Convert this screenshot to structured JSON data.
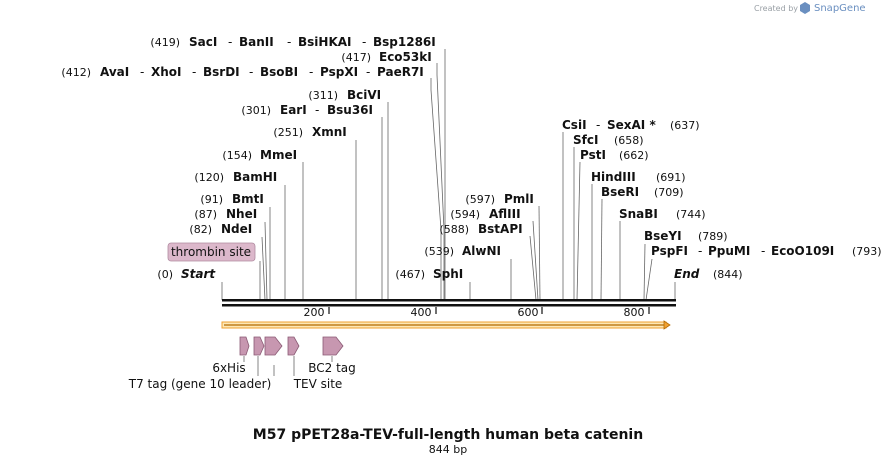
{
  "credit": {
    "prefix": "Created by",
    "brand": "SnapGene"
  },
  "title": "M57 pPET28a-TEV-full-length human beta catenin",
  "subtitle": "844 bp",
  "sequence_length": 844,
  "ruler_ticks": [
    "200",
    "400",
    "600",
    "800"
  ],
  "ends": [
    {
      "pos": "(0)",
      "label": "Start"
    },
    {
      "label": "End",
      "pos": "(844)"
    }
  ],
  "colors": {
    "orf": "#f0a030",
    "feature": "#c797b0",
    "feature_stroke": "#8a5a74",
    "thrombin_bg": "#dcb8cb"
  },
  "enzyme_rows": [
    {
      "pos": "(419)",
      "names": [
        "SacI",
        "BanII",
        "BsiHKAI",
        "Bsp1286I"
      ]
    },
    {
      "pos": "(417)",
      "names": [
        "Eco53kI"
      ]
    },
    {
      "pos": "(412)",
      "names": [
        "AvaI",
        "XhoI",
        "BsrDI",
        "BsoBI",
        "PspXI",
        "PaeR7I"
      ]
    },
    {
      "pos": "(311)",
      "names": [
        "BciVI"
      ]
    },
    {
      "pos": "(301)",
      "names": [
        "EarI",
        "Bsu36I"
      ]
    },
    {
      "pos": "(251)",
      "names": [
        "XmnI"
      ]
    },
    {
      "pos": "(154)",
      "names": [
        "MmeI"
      ]
    },
    {
      "pos": "(120)",
      "names": [
        "BamHI"
      ]
    },
    {
      "pos": "(91)",
      "names": [
        "BmtI"
      ]
    },
    {
      "pos": "(87)",
      "names": [
        "NheI"
      ]
    },
    {
      "pos": "(82)",
      "names": [
        "NdeI"
      ]
    },
    {
      "pos": "(467)",
      "names": [
        "SphI"
      ]
    },
    {
      "pos": "(539)",
      "names": [
        "AlwNI"
      ]
    },
    {
      "pos": "(588)",
      "names": [
        "BstAPI"
      ]
    },
    {
      "pos": "(594)",
      "names": [
        "AflIII"
      ]
    },
    {
      "pos": "(597)",
      "names": [
        "PmlI"
      ]
    },
    {
      "names": [
        "CsiI",
        "SexAI *"
      ],
      "pos": "(637)"
    },
    {
      "names": [
        "SfcI"
      ],
      "pos": "(658)"
    },
    {
      "names": [
        "PstI"
      ],
      "pos": "(662)"
    },
    {
      "names": [
        "HindIII"
      ],
      "pos": "(691)"
    },
    {
      "names": [
        "BseRI"
      ],
      "pos": "(709)"
    },
    {
      "names": [
        "SnaBI"
      ],
      "pos": "(744)"
    },
    {
      "names": [
        "BseYI"
      ],
      "pos": "(789)"
    },
    {
      "names": [
        "PspFI",
        "PpuMI",
        "EcoO109I"
      ],
      "pos": "(793)"
    }
  ],
  "thrombin_label": "thrombin site",
  "features": [
    "6xHis",
    "T7 tag (gene 10 leader)",
    "TEV site",
    "BC2 tag"
  ]
}
